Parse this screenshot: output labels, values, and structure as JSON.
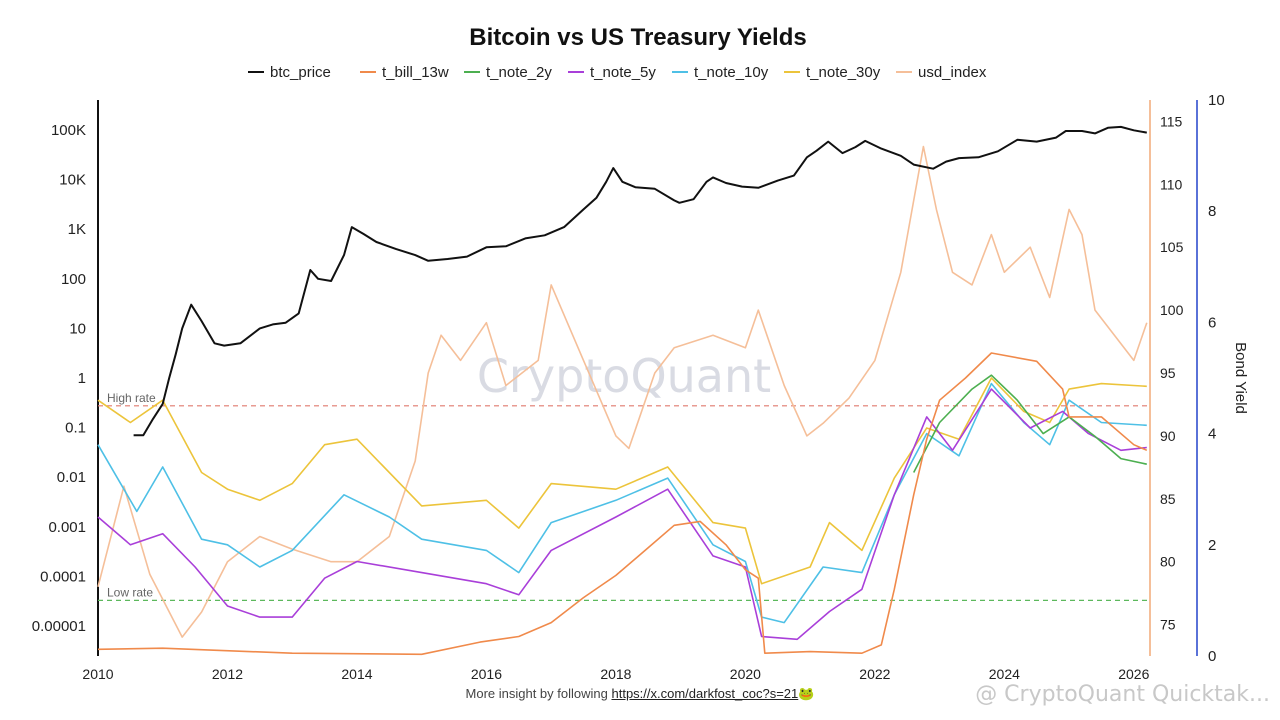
{
  "chart_data": {
    "type": "line",
    "title": "Bitcoin vs US Treasury Yields",
    "watermark": "CryptoQuant",
    "legend": [
      {
        "name": "btc_price",
        "color": "#111111"
      },
      {
        "name": "t_bill_13w",
        "color": "#f08a4b"
      },
      {
        "name": "t_note_2y",
        "color": "#4caf50"
      },
      {
        "name": "t_note_5y",
        "color": "#a93fd9"
      },
      {
        "name": "t_note_10y",
        "color": "#4ec0e6"
      },
      {
        "name": "t_note_30y",
        "color": "#ecc43b"
      },
      {
        "name": "usd_index",
        "color": "#f5bf99"
      }
    ],
    "x_ticks": [
      "2010",
      "2012",
      "2014",
      "2016",
      "2018",
      "2020",
      "2022",
      "2024",
      "2026"
    ],
    "x_range": [
      2010,
      2026.25
    ],
    "left_axis": {
      "scale": "log",
      "ticks": [
        "100K",
        "10K",
        "1K",
        "100",
        "10",
        "1",
        "0.1",
        "0.01",
        "0.001",
        "0.0001",
        "0.00001"
      ],
      "tick_values": [
        100000,
        10000,
        1000,
        100,
        10,
        1,
        0.1,
        0.01,
        0.001,
        0.0001,
        1e-05
      ]
    },
    "mid_axis": {
      "ticks": [
        "115",
        "110",
        "105",
        "100",
        "95",
        "90",
        "85",
        "80",
        "75"
      ],
      "tick_values": [
        115,
        110,
        105,
        100,
        95,
        90,
        85,
        80,
        75
      ],
      "range": [
        72.5,
        116.7
      ]
    },
    "right_axis": {
      "label": "Bond Yield",
      "ticks": [
        "10",
        "8",
        "6",
        "4",
        "2",
        "0"
      ],
      "tick_values": [
        10,
        8,
        6,
        4,
        2,
        0
      ],
      "range": [
        0,
        10
      ]
    },
    "reference_lines": [
      {
        "label": "High rate",
        "yield": 4.5,
        "color": "#e07a6e"
      },
      {
        "label": "Low rate",
        "yield": 1.0,
        "color": "#5cb85c"
      }
    ],
    "series": [
      {
        "name": "btc_price",
        "axis": "left",
        "x": [
          2010.55,
          2010.7,
          2010.85,
          2011.0,
          2011.1,
          2011.2,
          2011.3,
          2011.44,
          2011.6,
          2011.8,
          2011.95,
          2012.2,
          2012.5,
          2012.7,
          2012.9,
          2013.1,
          2013.28,
          2013.4,
          2013.6,
          2013.8,
          2013.92,
          2014.1,
          2014.3,
          2014.6,
          2014.9,
          2015.1,
          2015.4,
          2015.7,
          2016.0,
          2016.3,
          2016.6,
          2016.9,
          2017.2,
          2017.5,
          2017.7,
          2017.85,
          2017.96,
          2018.1,
          2018.3,
          2018.6,
          2018.9,
          2018.98,
          2019.2,
          2019.4,
          2019.5,
          2019.7,
          2019.95,
          2020.2,
          2020.5,
          2020.75,
          2020.95,
          2021.1,
          2021.28,
          2021.5,
          2021.7,
          2021.85,
          2022.1,
          2022.4,
          2022.6,
          2022.9,
          2023.1,
          2023.3,
          2023.6,
          2023.9,
          2024.2,
          2024.5,
          2024.8,
          2024.95,
          2025.2,
          2025.4,
          2025.6,
          2025.8,
          2026.0,
          2026.2
        ],
        "values": [
          0.07,
          0.07,
          0.15,
          0.3,
          1.0,
          3.0,
          10,
          30,
          14,
          5,
          4.5,
          5,
          10,
          12,
          13,
          20,
          150,
          100,
          90,
          300,
          1100,
          800,
          550,
          400,
          300,
          230,
          250,
          280,
          430,
          450,
          650,
          750,
          1100,
          2500,
          4300,
          9000,
          17000,
          9000,
          7000,
          6500,
          3800,
          3400,
          4000,
          9000,
          11000,
          8500,
          7200,
          6800,
          9500,
          12000,
          28000,
          38000,
          58000,
          34000,
          45000,
          60000,
          42000,
          30000,
          20000,
          16500,
          23000,
          27000,
          28000,
          37000,
          63000,
          58000,
          70000,
          95000,
          95000,
          85000,
          110000,
          115000,
          98000,
          88000
        ]
      },
      {
        "name": "t_bill_13w",
        "axis": "right",
        "x": [
          2010.0,
          2011.0,
          2013.0,
          2015.0,
          2015.9,
          2016.5,
          2017.0,
          2017.5,
          2018.0,
          2018.5,
          2018.9,
          2019.3,
          2019.7,
          2020.0,
          2020.2,
          2020.3,
          2021.0,
          2021.8,
          2022.1,
          2022.3,
          2022.6,
          2022.8,
          2023.0,
          2023.4,
          2023.8,
          2024.5,
          2024.9,
          2025.0,
          2025.5,
          2026.0,
          2026.2
        ],
        "values": [
          0.12,
          0.14,
          0.05,
          0.03,
          0.25,
          0.35,
          0.6,
          1.05,
          1.45,
          1.95,
          2.35,
          2.42,
          2.0,
          1.55,
          1.4,
          0.05,
          0.08,
          0.05,
          0.2,
          1.2,
          2.9,
          3.9,
          4.6,
          5.0,
          5.45,
          5.3,
          4.8,
          4.3,
          4.3,
          3.8,
          3.7
        ]
      },
      {
        "name": "t_note_2y",
        "axis": "right",
        "x": [
          2022.6,
          2023.0,
          2023.5,
          2023.8,
          2024.2,
          2024.6,
          2025.0,
          2025.4,
          2025.8,
          2026.2
        ],
        "values": [
          3.3,
          4.2,
          4.8,
          5.05,
          4.6,
          4.0,
          4.3,
          3.95,
          3.55,
          3.45
        ]
      },
      {
        "name": "t_note_5y",
        "axis": "right",
        "x": [
          2010.0,
          2010.5,
          2011.0,
          2011.5,
          2012.0,
          2012.5,
          2013.0,
          2013.5,
          2014.0,
          2015.0,
          2016.0,
          2016.5,
          2017.0,
          2018.0,
          2018.8,
          2019.5,
          2020.0,
          2020.25,
          2020.8,
          2021.3,
          2021.8,
          2022.3,
          2022.8,
          2023.2,
          2023.8,
          2024.4,
          2024.9,
          2025.3,
          2025.8,
          2026.2
        ],
        "values": [
          2.5,
          2.0,
          2.2,
          1.6,
          0.9,
          0.7,
          0.7,
          1.4,
          1.7,
          1.5,
          1.3,
          1.1,
          1.9,
          2.5,
          3.0,
          1.8,
          1.6,
          0.35,
          0.3,
          0.8,
          1.2,
          2.9,
          4.3,
          3.7,
          4.8,
          4.1,
          4.4,
          4.0,
          3.7,
          3.75
        ]
      },
      {
        "name": "t_note_10y",
        "axis": "right",
        "x": [
          2010.0,
          2010.6,
          2011.0,
          2011.6,
          2012.0,
          2012.5,
          2013.0,
          2013.8,
          2014.5,
          2015.0,
          2016.0,
          2016.5,
          2017.0,
          2018.0,
          2018.8,
          2019.5,
          2020.0,
          2020.25,
          2020.6,
          2021.2,
          2021.8,
          2022.3,
          2022.8,
          2023.3,
          2023.8,
          2024.3,
          2024.7,
          2025.0,
          2025.5,
          2026.2
        ],
        "values": [
          3.8,
          2.6,
          3.4,
          2.1,
          2.0,
          1.6,
          1.9,
          2.9,
          2.5,
          2.1,
          1.9,
          1.5,
          2.4,
          2.8,
          3.2,
          2.0,
          1.7,
          0.7,
          0.6,
          1.6,
          1.5,
          2.9,
          4.0,
          3.6,
          4.9,
          4.2,
          3.8,
          4.6,
          4.2,
          4.15
        ]
      },
      {
        "name": "t_note_30y",
        "axis": "right",
        "x": [
          2010.0,
          2010.5,
          2011.0,
          2011.6,
          2012.0,
          2012.5,
          2013.0,
          2013.5,
          2014.0,
          2015.0,
          2016.0,
          2016.5,
          2017.0,
          2018.0,
          2018.8,
          2019.5,
          2020.0,
          2020.25,
          2021.0,
          2021.3,
          2021.8,
          2022.3,
          2022.8,
          2023.3,
          2023.8,
          2024.3,
          2024.7,
          2025.0,
          2025.5,
          2026.2
        ],
        "values": [
          4.6,
          4.2,
          4.6,
          3.3,
          3.0,
          2.8,
          3.1,
          3.8,
          3.9,
          2.7,
          2.8,
          2.3,
          3.1,
          3.0,
          3.4,
          2.4,
          2.3,
          1.3,
          1.6,
          2.4,
          1.9,
          3.2,
          4.1,
          3.9,
          5.0,
          4.4,
          4.2,
          4.8,
          4.9,
          4.85
        ]
      },
      {
        "name": "usd_index",
        "axis": "mid",
        "x": [
          2010.0,
          2010.4,
          2010.8,
          2011.3,
          2011.6,
          2012.0,
          2012.5,
          2013.0,
          2013.6,
          2014.0,
          2014.5,
          2014.9,
          2015.1,
          2015.3,
          2015.6,
          2016.0,
          2016.3,
          2016.8,
          2017.0,
          2017.5,
          2018.0,
          2018.2,
          2018.6,
          2018.9,
          2019.5,
          2020.0,
          2020.2,
          2020.6,
          2020.95,
          2021.2,
          2021.6,
          2022.0,
          2022.4,
          2022.75,
          2022.95,
          2023.2,
          2023.5,
          2023.8,
          2024.0,
          2024.4,
          2024.7,
          2025.0,
          2025.2,
          2025.4,
          2025.7,
          2026.0,
          2026.2
        ],
        "values": [
          78,
          86,
          79,
          74,
          76,
          80,
          82,
          81,
          80,
          80,
          82,
          88,
          95,
          98,
          96,
          99,
          94,
          96,
          102,
          96,
          90,
          89,
          95,
          97,
          98,
          97,
          100,
          94,
          90,
          91,
          93,
          96,
          103,
          113,
          108,
          103,
          102,
          106,
          103,
          105,
          101,
          108,
          106,
          100,
          98,
          96,
          99
        ]
      }
    ]
  },
  "footer": {
    "prefix": "More insight by following ",
    "link": "https://x.com/darkfost_coc?s=21",
    "emoji": "🐸"
  },
  "corner_watermark": "@ CryptoQuant Quicktak..."
}
